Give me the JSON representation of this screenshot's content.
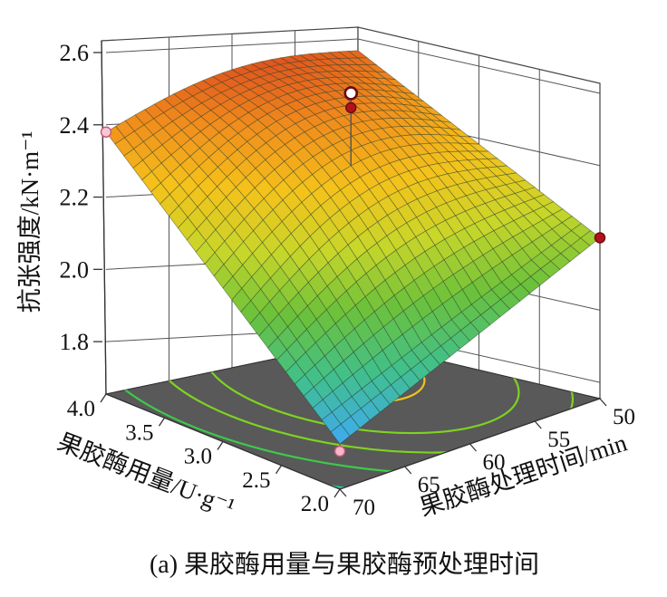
{
  "chart_data": {
    "type": "surface3d",
    "title": "",
    "caption": "(a) 果胶酶用量与果胶酶预处理时间",
    "zlabel": "抗张强度/kN·m⁻¹",
    "xlabel": "果胶酶处理时间/min",
    "ylabel": "果胶酶用量/U·g⁻¹",
    "x_ticks": [
      "50",
      "55",
      "60",
      "65",
      "70"
    ],
    "y_ticks": [
      "4.0",
      "3.5",
      "3.0",
      "2.5",
      "2.0"
    ],
    "z_ticks": [
      "2.6",
      "2.4",
      "2.2",
      "2.0",
      "1.8"
    ],
    "zlim": [
      1.7,
      2.6
    ],
    "surface_corners": [
      {
        "x": 70,
        "y": 4.0,
        "z": 2.38
      },
      {
        "x": 50,
        "y": 4.0,
        "z": 2.46
      },
      {
        "x": 50,
        "y": 2.0,
        "z": 2.1
      },
      {
        "x": 70,
        "y": 2.0,
        "z": 1.78
      }
    ],
    "design_points": [
      {
        "x": 70,
        "y": 4.0,
        "z": 2.38,
        "position": "above"
      },
      {
        "x": 60,
        "y": 3.0,
        "z": 2.52,
        "position": "above"
      },
      {
        "x": 60,
        "y": 3.0,
        "z": 2.48,
        "position": "above"
      },
      {
        "x": 50,
        "y": 2.0,
        "z": 2.1,
        "position": "above"
      },
      {
        "x": 70,
        "y": 2.0,
        "z": 1.76,
        "position": "below"
      }
    ],
    "colormap": [
      "#3fa9f5",
      "#41c08a",
      "#6cc13a",
      "#c8d62a",
      "#f5c21b",
      "#f08a1c",
      "#d8391e"
    ],
    "floor_color": "#595959",
    "contour_colors": [
      "#f2c21b",
      "#7ed321",
      "#3ec94a",
      "#2fc3a0"
    ],
    "grid": true
  }
}
